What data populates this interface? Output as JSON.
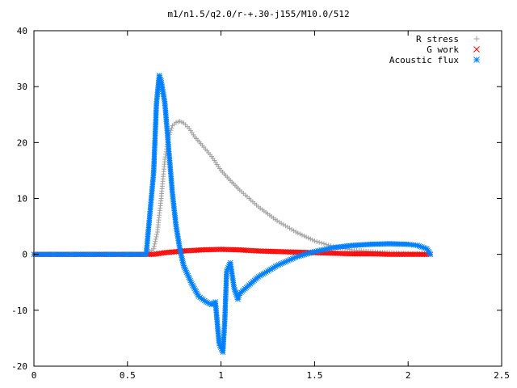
{
  "chart_data": {
    "type": "scatter",
    "title": "m1/n1.5/q2.0/r-+.30-j155/M10.0/512",
    "xlabel": "",
    "ylabel": "",
    "xlim": [
      0,
      2.5
    ],
    "ylim": [
      -20,
      40
    ],
    "x_ticks": [
      0,
      0.5,
      1,
      1.5,
      2,
      2.5
    ],
    "x_tick_labels": [
      "0",
      "0.5",
      "1",
      "1.5",
      "2",
      "2.5"
    ],
    "y_ticks": [
      -20,
      -10,
      0,
      10,
      20,
      30,
      40
    ],
    "y_tick_labels": [
      "-20",
      "-10",
      "0",
      "10",
      "20",
      "30",
      "40"
    ],
    "grid": false,
    "legend_position": "top-right",
    "series": [
      {
        "name": "R stress",
        "marker": "plus",
        "color": "#a0a0a0",
        "x": [
          0.0,
          0.2,
          0.4,
          0.6,
          0.64,
          0.66,
          0.68,
          0.7,
          0.72,
          0.74,
          0.76,
          0.78,
          0.8,
          0.83,
          0.86,
          0.9,
          0.95,
          1.0,
          1.05,
          1.1,
          1.2,
          1.3,
          1.4,
          1.5,
          1.6,
          1.7,
          1.8,
          1.9,
          2.0,
          2.1,
          2.12
        ],
        "y": [
          0,
          0,
          0,
          0,
          1,
          4,
          10,
          17,
          21,
          23,
          23.6,
          23.8,
          23.5,
          22.5,
          21,
          19.5,
          17.5,
          15,
          13.2,
          11.5,
          8.5,
          6,
          4,
          2.4,
          1.4,
          0.8,
          0.5,
          0.3,
          0.2,
          0.1,
          0
        ]
      },
      {
        "name": "G work",
        "marker": "cross",
        "color": "#ff0000",
        "x": [
          0.0,
          0.2,
          0.4,
          0.6,
          0.64,
          0.7,
          0.8,
          0.9,
          1.0,
          1.1,
          1.2,
          1.3,
          1.4,
          1.5,
          1.6,
          1.7,
          1.8,
          1.9,
          2.0,
          2.1,
          2.12
        ],
        "y": [
          0,
          0,
          0,
          0,
          0,
          0.3,
          0.6,
          0.8,
          0.9,
          0.8,
          0.6,
          0.5,
          0.4,
          0.3,
          0.2,
          0.1,
          0.1,
          0,
          0,
          0,
          0
        ]
      },
      {
        "name": "Acoustic flux",
        "marker": "star",
        "color": "#0080ff",
        "x": [
          0.0,
          0.2,
          0.4,
          0.6,
          0.64,
          0.655,
          0.67,
          0.68,
          0.7,
          0.72,
          0.74,
          0.76,
          0.78,
          0.8,
          0.84,
          0.88,
          0.92,
          0.95,
          0.97,
          0.99,
          1.01,
          1.02,
          1.03,
          1.05,
          1.07,
          1.09,
          1.1,
          1.15,
          1.2,
          1.3,
          1.4,
          1.5,
          1.6,
          1.7,
          1.8,
          1.9,
          2.0,
          2.05,
          2.1,
          2.12
        ],
        "y": [
          0,
          0,
          0,
          0,
          14.7,
          27,
          32,
          31,
          27,
          19,
          11,
          5,
          1,
          -2,
          -5,
          -7.5,
          -8.5,
          -9,
          -8.5,
          -16,
          -17.5,
          -12,
          -3,
          -1.5,
          -6,
          -8,
          -7,
          -5.5,
          -4,
          -2,
          -0.5,
          0.5,
          1.2,
          1.6,
          1.8,
          1.9,
          1.8,
          1.6,
          1,
          0
        ]
      }
    ]
  }
}
